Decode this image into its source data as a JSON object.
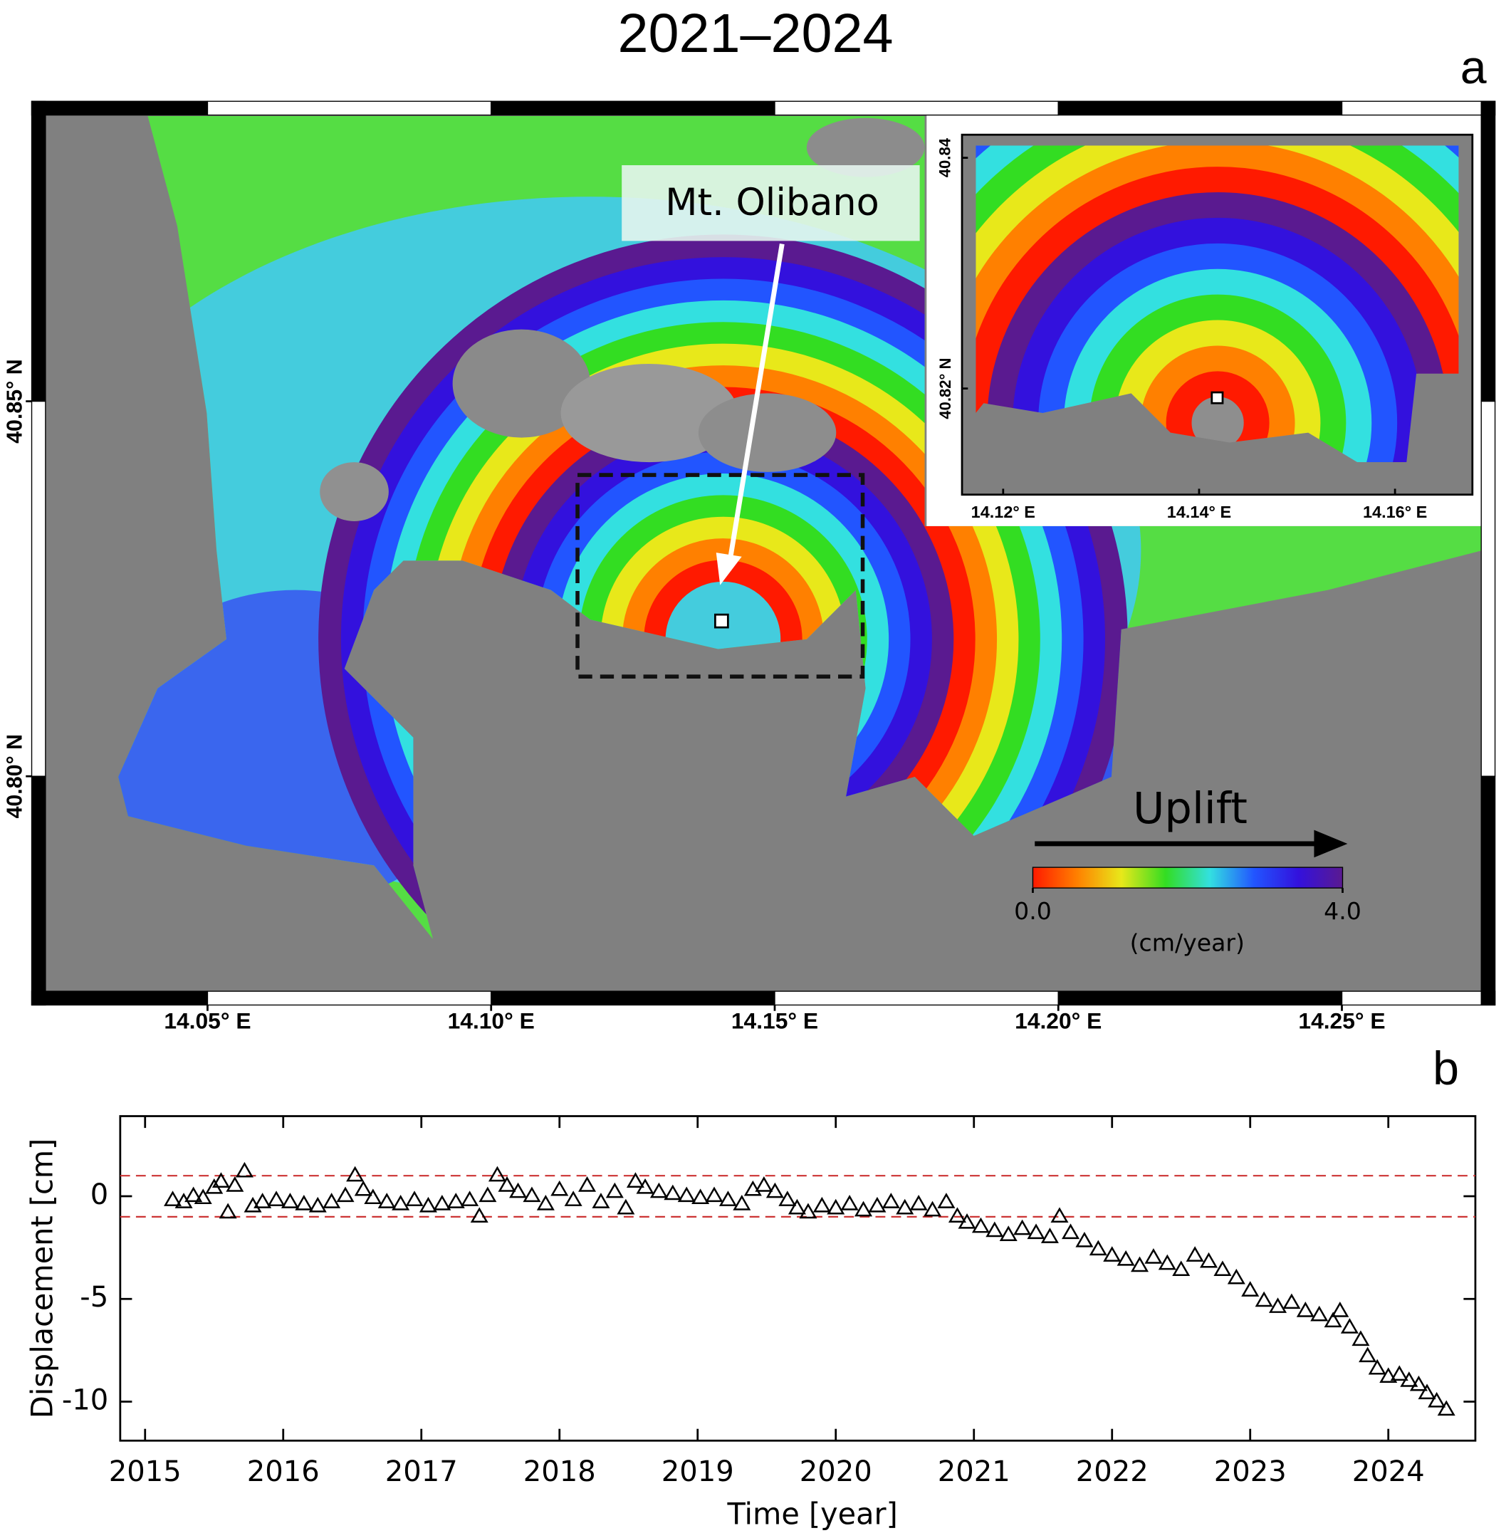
{
  "chart_data": [
    {
      "type": "map",
      "title": "2021–2024",
      "panel_label": "a",
      "annotation": "Mt. Olibano",
      "xlim": [
        14.019,
        14.277
      ],
      "ylim": [
        40.7695,
        40.89
      ],
      "xticks": [
        {
          "value": 14.05,
          "label": "14.05° E"
        },
        {
          "value": 14.1,
          "label": "14.10° E"
        },
        {
          "value": 14.15,
          "label": "14.15° E"
        },
        {
          "value": 14.2,
          "label": "14.20° E"
        },
        {
          "value": 14.25,
          "label": "14.25° E"
        }
      ],
      "yticks": [
        {
          "value": 40.8,
          "label": "40.80° N"
        },
        {
          "value": 40.85,
          "label": "40.85° N"
        }
      ],
      "inset": {
        "xlim": [
          14.1158,
          14.1679
        ],
        "ylim": [
          40.8108,
          40.842
        ],
        "xticks": [
          {
            "value": 14.12,
            "label": "14.12° E"
          },
          {
            "value": 14.14,
            "label": "14.14° E"
          },
          {
            "value": 14.16,
            "label": "14.16° E"
          }
        ],
        "yticks": [
          40.84,
          {
            "value": 40.82,
            "label": "40.82° N"
          }
        ]
      },
      "colorbar": {
        "label": "Uplift",
        "unit": "(cm/year)",
        "clim": [
          0,
          4
        ],
        "ticks": [
          {
            "value": 0,
            "label": "0.0"
          },
          {
            "value": 4,
            "label": "4.0"
          }
        ],
        "colors": [
          "#ff1a00",
          "#ff8000",
          "#e8e81a",
          "#33dd22",
          "#33e0e0",
          "#2255ff",
          "#3311dd",
          "#5a1a90"
        ]
      }
    },
    {
      "type": "scatter",
      "panel_label": "b",
      "xlabel": "Time [year]",
      "ylabel": "Displacement [cm]",
      "xlim": [
        2014.82,
        2024.63
      ],
      "ylim": [
        -11.9,
        3.9
      ],
      "xticks": [
        2015,
        2016,
        2017,
        2018,
        2019,
        2020,
        2021,
        2022,
        2023,
        2024
      ],
      "yticks": [
        -10,
        -5,
        0
      ],
      "color": "#000000",
      "reference_lines": {
        "values": [
          1,
          -1
        ],
        "color": "#cc3333"
      },
      "x": [
        2015.2,
        2015.28,
        2015.35,
        2015.42,
        2015.5,
        2015.55,
        2015.6,
        2015.65,
        2015.72,
        2015.78,
        2015.85,
        2015.95,
        2016.05,
        2016.15,
        2016.25,
        2016.35,
        2016.45,
        2016.52,
        2016.58,
        2016.65,
        2016.75,
        2016.85,
        2016.95,
        2017.05,
        2017.15,
        2017.25,
        2017.35,
        2017.42,
        2017.48,
        2017.55,
        2017.62,
        2017.7,
        2017.8,
        2017.9,
        2018.0,
        2018.1,
        2018.2,
        2018.3,
        2018.4,
        2018.48,
        2018.55,
        2018.62,
        2018.72,
        2018.82,
        2018.92,
        2019.02,
        2019.12,
        2019.22,
        2019.32,
        2019.4,
        2019.48,
        2019.56,
        2019.65,
        2019.72,
        2019.8,
        2019.9,
        2020.0,
        2020.1,
        2020.2,
        2020.3,
        2020.4,
        2020.5,
        2020.6,
        2020.7,
        2020.8,
        2020.88,
        2020.95,
        2021.05,
        2021.15,
        2021.25,
        2021.35,
        2021.45,
        2021.55,
        2021.62,
        2021.7,
        2021.8,
        2021.9,
        2022.0,
        2022.1,
        2022.2,
        2022.3,
        2022.4,
        2022.5,
        2022.6,
        2022.7,
        2022.8,
        2022.9,
        2023.0,
        2023.1,
        2023.2,
        2023.3,
        2023.4,
        2023.5,
        2023.6,
        2023.65,
        2023.72,
        2023.8,
        2023.85,
        2023.92,
        2024.0,
        2024.08,
        2024.15,
        2024.22,
        2024.28,
        2024.35,
        2024.42
      ],
      "values": [
        -0.2,
        -0.3,
        0.0,
        -0.1,
        0.4,
        0.7,
        -0.8,
        0.5,
        1.2,
        -0.5,
        -0.3,
        -0.2,
        -0.3,
        -0.4,
        -0.5,
        -0.3,
        0.0,
        1.0,
        0.3,
        -0.1,
        -0.3,
        -0.4,
        -0.2,
        -0.5,
        -0.4,
        -0.3,
        -0.2,
        -1.0,
        0.0,
        1.0,
        0.5,
        0.2,
        0.0,
        -0.4,
        0.3,
        -0.2,
        0.5,
        -0.3,
        0.2,
        -0.6,
        0.7,
        0.4,
        0.2,
        0.1,
        0.0,
        -0.1,
        0.0,
        -0.2,
        -0.4,
        0.3,
        0.5,
        0.2,
        -0.2,
        -0.6,
        -0.8,
        -0.5,
        -0.6,
        -0.4,
        -0.7,
        -0.5,
        -0.3,
        -0.6,
        -0.4,
        -0.7,
        -0.3,
        -1.0,
        -1.3,
        -1.5,
        -1.7,
        -1.9,
        -1.6,
        -1.8,
        -2.0,
        -1.0,
        -1.8,
        -2.2,
        -2.6,
        -2.9,
        -3.1,
        -3.4,
        -3.0,
        -3.3,
        -3.6,
        -2.9,
        -3.2,
        -3.6,
        -4.0,
        -4.6,
        -5.1,
        -5.4,
        -5.2,
        -5.6,
        -5.8,
        -6.1,
        -5.6,
        -6.4,
        -7.0,
        -7.8,
        -8.4,
        -8.8,
        -8.7,
        -9.0,
        -9.2,
        -9.6,
        -10.0,
        -10.4
      ]
    }
  ]
}
